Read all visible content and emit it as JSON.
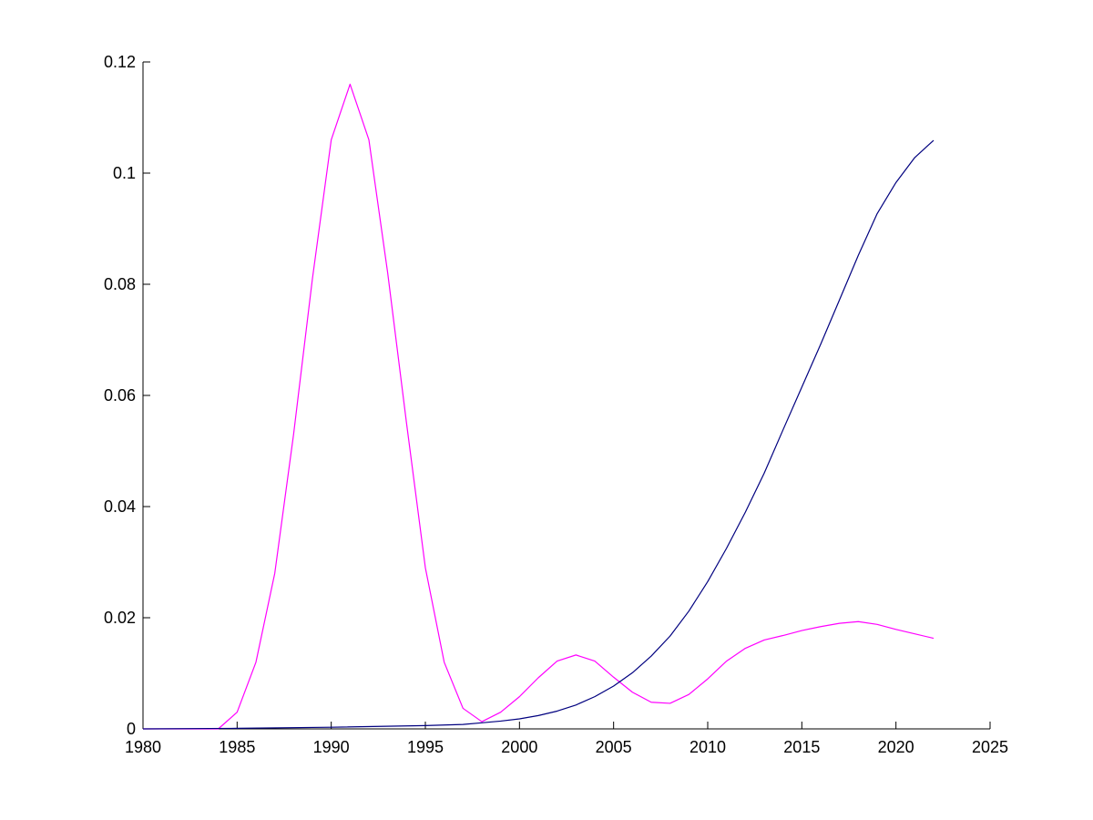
{
  "chart_data": {
    "type": "line",
    "title": "",
    "xlabel": "",
    "ylabel": "",
    "xlim": [
      1980,
      2025
    ],
    "ylim": [
      0,
      0.12
    ],
    "grid": false,
    "box": false,
    "x_ticks": [
      "1980",
      "1985",
      "1990",
      "1995",
      "2000",
      "2005",
      "2010",
      "2015",
      "2020",
      "2025"
    ],
    "y_ticks": [
      "0",
      "0.02",
      "0.04",
      "0.06",
      "0.08",
      "0.1",
      "0.12"
    ],
    "series": [
      {
        "color": "#ff00ff",
        "points": [
          [
            1980,
            0
          ],
          [
            1981,
            0
          ],
          [
            1982,
            0
          ],
          [
            1983,
            0
          ],
          [
            1984,
            0
          ],
          [
            1985,
            0.003
          ],
          [
            1986,
            0.012
          ],
          [
            1987,
            0.028
          ],
          [
            1988,
            0.053
          ],
          [
            1989,
            0.081
          ],
          [
            1990,
            0.106
          ],
          [
            1991,
            0.116
          ],
          [
            1992,
            0.106
          ],
          [
            1993,
            0.082
          ],
          [
            1994,
            0.055
          ],
          [
            1995,
            0.029
          ],
          [
            1996,
            0.012
          ],
          [
            1997,
            0.0037
          ],
          [
            1998,
            0.0013
          ],
          [
            1999,
            0.003
          ],
          [
            2000,
            0.0058
          ],
          [
            2001,
            0.0092
          ],
          [
            2002,
            0.0122
          ],
          [
            2003,
            0.0133
          ],
          [
            2004,
            0.0122
          ],
          [
            2005,
            0.0093
          ],
          [
            2006,
            0.0066
          ],
          [
            2007,
            0.0048
          ],
          [
            2008,
            0.0046
          ],
          [
            2009,
            0.0062
          ],
          [
            2010,
            0.009
          ],
          [
            2011,
            0.0122
          ],
          [
            2012,
            0.0145
          ],
          [
            2013,
            0.016
          ],
          [
            2014,
            0.0168
          ],
          [
            2015,
            0.0177
          ],
          [
            2016,
            0.0184
          ],
          [
            2017,
            0.019
          ],
          [
            2018,
            0.0193
          ],
          [
            2019,
            0.0188
          ],
          [
            2020,
            0.0179
          ],
          [
            2021,
            0.0171
          ],
          [
            2022,
            0.0163
          ]
        ]
      },
      {
        "color": "#00007f",
        "points": [
          [
            1980,
            0
          ],
          [
            1985,
            0.0001
          ],
          [
            1990,
            0.0003
          ],
          [
            1995,
            0.0006
          ],
          [
            1997,
            0.0008
          ],
          [
            1998,
            0.0011
          ],
          [
            1999,
            0.0014
          ],
          [
            2000,
            0.0018
          ],
          [
            2001,
            0.0024
          ],
          [
            2002,
            0.0032
          ],
          [
            2003,
            0.0043
          ],
          [
            2004,
            0.0058
          ],
          [
            2005,
            0.0077
          ],
          [
            2006,
            0.0101
          ],
          [
            2007,
            0.0131
          ],
          [
            2008,
            0.0167
          ],
          [
            2009,
            0.0212
          ],
          [
            2010,
            0.0265
          ],
          [
            2011,
            0.0325
          ],
          [
            2012,
            0.039
          ],
          [
            2013,
            0.046
          ],
          [
            2014,
            0.0538
          ],
          [
            2015,
            0.0615
          ],
          [
            2016,
            0.0692
          ],
          [
            2017,
            0.0772
          ],
          [
            2018,
            0.0852
          ],
          [
            2019,
            0.0927
          ],
          [
            2020,
            0.0983
          ],
          [
            2021,
            0.1028
          ],
          [
            2022,
            0.1059
          ]
        ]
      }
    ]
  }
}
